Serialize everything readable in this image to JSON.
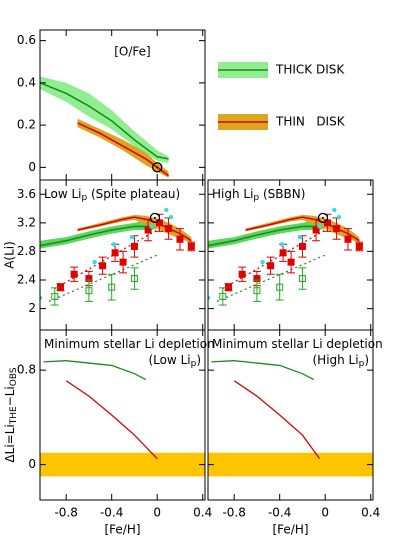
{
  "chart_data": [
    {
      "type": "line",
      "annotation": "[O/Fe]",
      "xlim": [
        -1.03,
        0.42
      ],
      "xticks": [
        -0.8,
        -0.4,
        0,
        0.4
      ],
      "show_xtick_labels": false,
      "ylim": [
        -0.06,
        0.65
      ],
      "yticks": [
        0,
        0.2,
        0.4,
        0.6
      ],
      "legend": "right",
      "sun": [
        0,
        0
      ],
      "series": [
        {
          "name": "THICK DISK",
          "kind": "band",
          "color": "#1e8c1e",
          "band_color": "#90ee90",
          "x": [
            -1.03,
            -0.8,
            -0.6,
            -0.4,
            -0.2,
            0,
            0.1
          ],
          "values": [
            0.4,
            0.35,
            0.29,
            0.22,
            0.13,
            0.05,
            0.04
          ],
          "upper": [
            0.43,
            0.4,
            0.35,
            0.27,
            0.17,
            0.08,
            0.05
          ],
          "lower": [
            0.37,
            0.31,
            0.24,
            0.18,
            0.1,
            0.03,
            0.02
          ]
        },
        {
          "name": "THIN   DISK",
          "kind": "band",
          "color": "#e00000",
          "band_color": "#daa520",
          "x": [
            -0.7,
            -0.5,
            -0.3,
            -0.1,
            0,
            0.1
          ],
          "values": [
            0.21,
            0.16,
            0.1,
            0.04,
            0,
            -0.04
          ],
          "upper": [
            0.23,
            0.18,
            0.13,
            0.07,
            0.02,
            -0.02
          ],
          "lower": [
            0.19,
            0.14,
            0.08,
            0.01,
            -0.02,
            -0.05
          ]
        }
      ]
    },
    {
      "type": "line",
      "title_parts": [
        "Low Li",
        "p",
        " (Spite plateau)"
      ],
      "ylabel": "A(Li)",
      "xlim": [
        -1.03,
        0.42
      ],
      "xticks": [
        -0.8,
        -0.4,
        0,
        0.4
      ],
      "show_xtick_labels": false,
      "ylim": [
        1.7,
        3.8
      ],
      "yticks": [
        2,
        2.4,
        2.8,
        3.2,
        3.6
      ],
      "show_ytick_labels": true,
      "sun": [
        -0.02,
        3.27
      ],
      "series": [
        {
          "kind": "band",
          "color": "#1e8c1e",
          "band_color": "#5cd65c",
          "x": [
            -1.03,
            -0.8,
            -0.6,
            -0.4,
            -0.2,
            -0.05,
            0.05
          ],
          "values": [
            2.88,
            2.95,
            3.03,
            3.1,
            3.15,
            3.15,
            3.18
          ],
          "upper": [
            2.95,
            3.0,
            3.08,
            3.15,
            3.2,
            3.25,
            3.2
          ],
          "lower": [
            2.84,
            2.9,
            2.98,
            3.05,
            3.1,
            3.1,
            3.14
          ]
        },
        {
          "kind": "band",
          "color": "#e00000",
          "band_color": "#daa520",
          "x": [
            -0.7,
            -0.5,
            -0.3,
            -0.2,
            -0.1,
            0,
            0.1,
            0.2,
            0.3
          ],
          "values": [
            3.1,
            3.17,
            3.25,
            3.28,
            3.25,
            3.2,
            3.12,
            3.05,
            2.95
          ],
          "upper": [
            3.12,
            3.2,
            3.28,
            3.31,
            3.3,
            3.26,
            3.2,
            3.12,
            3.0
          ],
          "lower": [
            3.08,
            3.15,
            3.22,
            3.24,
            3.18,
            3.12,
            3.04,
            2.98,
            2.92
          ]
        },
        {
          "kind": "dotted",
          "color": "#e00000",
          "x": [
            -0.9,
            0.0
          ],
          "values": [
            2.28,
            3.1
          ]
        },
        {
          "kind": "dotted",
          "color": "#1e8c1e",
          "x": [
            -0.95,
            0.0
          ],
          "values": [
            2.1,
            2.75
          ]
        },
        {
          "kind": "squares",
          "color": "#e00000",
          "x": [
            -0.85,
            -0.73,
            -0.6,
            -0.48,
            -0.37,
            -0.3,
            -0.2,
            -0.08,
            0.02,
            0.1,
            0.2,
            0.3
          ],
          "values": [
            2.3,
            2.48,
            2.42,
            2.6,
            2.78,
            2.65,
            2.87,
            3.1,
            3.2,
            3.12,
            2.97,
            2.87
          ],
          "errors": [
            0.05,
            0.1,
            0.1,
            0.12,
            0.12,
            0.15,
            0.15,
            0.15,
            0.12,
            0.15,
            0.15,
            0.06
          ]
        },
        {
          "kind": "open_squares",
          "color": "#22aa22",
          "x": [
            -0.9,
            -0.6,
            -0.4,
            -0.2
          ],
          "values": [
            2.17,
            2.25,
            2.3,
            2.42
          ],
          "errors": [
            0.12,
            0.15,
            0.18,
            0.15
          ]
        },
        {
          "kind": "dots",
          "color": "#33dddd",
          "x": [
            -1.03,
            -0.55,
            -0.38,
            -0.22,
            -0.05,
            0.08,
            0.12
          ],
          "values": [
            2.15,
            2.65,
            2.9,
            3.0,
            3.15,
            3.38,
            3.28
          ]
        }
      ]
    },
    {
      "type": "line",
      "title_parts": [
        "High Li",
        "p",
        " (SBBN)"
      ],
      "xlim": [
        -1.03,
        0.42
      ],
      "xticks": [
        -0.8,
        -0.4,
        0,
        0.4
      ],
      "show_xtick_labels": false,
      "ylim": [
        1.7,
        3.8
      ],
      "yticks": [
        2,
        2.4,
        2.8,
        3.2,
        3.6
      ],
      "show_ytick_labels": false,
      "sun": [
        -0.02,
        3.27
      ],
      "series": [
        {
          "kind": "band",
          "color": "#1e8c1e",
          "band_color": "#5cd65c",
          "x": [
            -1.03,
            -0.8,
            -0.6,
            -0.4,
            -0.2,
            -0.05,
            0.05
          ],
          "values": [
            2.88,
            2.95,
            3.03,
            3.1,
            3.15,
            3.15,
            3.18
          ],
          "upper": [
            2.95,
            3.0,
            3.08,
            3.15,
            3.2,
            3.25,
            3.2
          ],
          "lower": [
            2.84,
            2.9,
            2.98,
            3.05,
            3.1,
            3.1,
            3.14
          ]
        },
        {
          "kind": "band",
          "color": "#e00000",
          "band_color": "#daa520",
          "x": [
            -0.7,
            -0.5,
            -0.3,
            -0.2,
            -0.1,
            0,
            0.1,
            0.2,
            0.3
          ],
          "values": [
            3.1,
            3.17,
            3.25,
            3.28,
            3.25,
            3.2,
            3.12,
            3.05,
            2.95
          ],
          "upper": [
            3.12,
            3.2,
            3.28,
            3.31,
            3.3,
            3.26,
            3.2,
            3.12,
            3.0
          ],
          "lower": [
            3.08,
            3.15,
            3.22,
            3.24,
            3.18,
            3.12,
            3.04,
            2.98,
            2.92
          ]
        },
        {
          "kind": "dotted",
          "color": "#e00000",
          "x": [
            -0.9,
            0.0
          ],
          "values": [
            2.28,
            3.1
          ]
        },
        {
          "kind": "dotted",
          "color": "#1e8c1e",
          "x": [
            -0.95,
            0.0
          ],
          "values": [
            2.1,
            2.75
          ]
        },
        {
          "kind": "squares",
          "color": "#e00000",
          "x": [
            -0.85,
            -0.73,
            -0.6,
            -0.48,
            -0.37,
            -0.3,
            -0.2,
            -0.08,
            0.02,
            0.1,
            0.2,
            0.3
          ],
          "values": [
            2.3,
            2.48,
            2.42,
            2.6,
            2.78,
            2.65,
            2.87,
            3.1,
            3.2,
            3.12,
            2.97,
            2.87
          ],
          "errors": [
            0.05,
            0.1,
            0.1,
            0.12,
            0.12,
            0.15,
            0.15,
            0.15,
            0.12,
            0.15,
            0.15,
            0.06
          ]
        },
        {
          "kind": "open_squares",
          "color": "#22aa22",
          "x": [
            -0.9,
            -0.6,
            -0.4,
            -0.2
          ],
          "values": [
            2.17,
            2.25,
            2.3,
            2.42
          ],
          "errors": [
            0.12,
            0.15,
            0.18,
            0.15
          ]
        },
        {
          "kind": "dots",
          "color": "#33dddd",
          "x": [
            -1.03,
            -0.55,
            -0.38,
            -0.22,
            -0.05,
            0.08,
            0.12
          ],
          "values": [
            2.15,
            2.65,
            2.9,
            3.0,
            3.15,
            3.38,
            3.28
          ]
        }
      ]
    },
    {
      "type": "line",
      "title_parts": [
        "Minimum stellar Li depletion"
      ],
      "subtitle_parts": [
        "(Low Li",
        "p",
        ")"
      ],
      "ylabel_parts": [
        "ΔLi=Li",
        "THE",
        "−Li",
        "OBS"
      ],
      "xlabel": "[Fe/H]",
      "xlim": [
        -1.03,
        0.42
      ],
      "xticks": [
        -0.8,
        -0.4,
        0,
        0.4
      ],
      "show_xtick_labels": true,
      "ylim": [
        -0.3,
        1.14
      ],
      "yticks": [
        0,
        0.8
      ],
      "show_ytick_labels": true,
      "band": {
        "lower": -0.1,
        "upper": 0.1,
        "color": "#ffc400"
      },
      "series": [
        {
          "kind": "line",
          "color": "#1e8c1e",
          "x": [
            -1.0,
            -0.8,
            -0.6,
            -0.4,
            -0.2,
            -0.1
          ],
          "values": [
            0.87,
            0.88,
            0.86,
            0.84,
            0.77,
            0.72
          ]
        },
        {
          "kind": "line",
          "color": "#e00000",
          "x": [
            -0.8,
            -0.6,
            -0.4,
            -0.2,
            0.0
          ],
          "values": [
            0.71,
            0.58,
            0.42,
            0.25,
            0.05
          ]
        }
      ]
    },
    {
      "type": "line",
      "title_parts": [
        "Minimum stellar Li depletion"
      ],
      "subtitle_parts": [
        "(High Li",
        "p",
        ")"
      ],
      "xlabel": "[Fe/H]",
      "xlim": [
        -1.03,
        0.42
      ],
      "xticks": [
        -0.8,
        -0.4,
        0,
        0.4
      ],
      "show_xtick_labels": true,
      "ylim": [
        -0.3,
        1.14
      ],
      "yticks": [
        0,
        0.8
      ],
      "show_ytick_labels": false,
      "band": {
        "lower": -0.1,
        "upper": 0.1,
        "color": "#ffc400"
      },
      "series": [
        {
          "kind": "line",
          "color": "#1e8c1e",
          "x": [
            -1.0,
            -0.8,
            -0.6,
            -0.4,
            -0.2,
            -0.1
          ],
          "values": [
            0.87,
            0.88,
            0.86,
            0.84,
            0.77,
            0.72
          ]
        },
        {
          "kind": "line",
          "color": "#e00000",
          "x": [
            -0.8,
            -0.6,
            -0.4,
            -0.2,
            -0.05
          ],
          "values": [
            0.71,
            0.58,
            0.42,
            0.25,
            0.05
          ]
        }
      ]
    }
  ]
}
